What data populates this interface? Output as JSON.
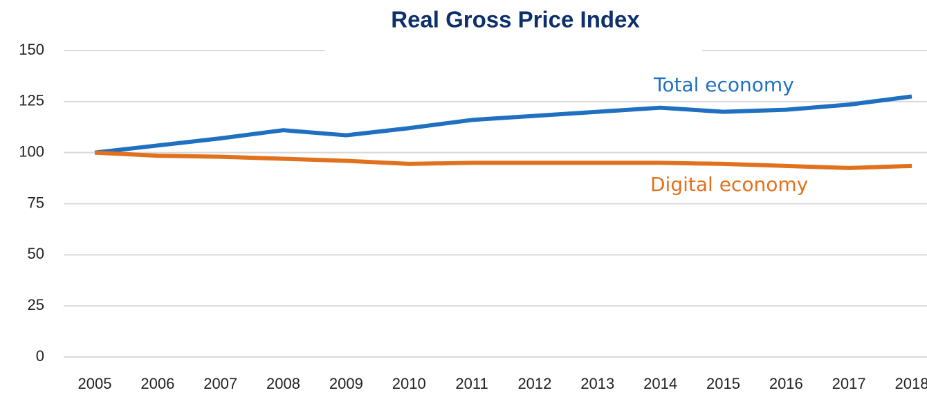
{
  "chart_data": {
    "type": "line",
    "title": "Real Gross Price Index",
    "categories": [
      "2005",
      "2006",
      "2007",
      "2008",
      "2009",
      "2010",
      "2011",
      "2012",
      "2013",
      "2014",
      "2015",
      "2016",
      "2017",
      "2018"
    ],
    "series": [
      {
        "name": "Total economy",
        "color": "#1f70c1",
        "values": [
          100,
          103.5,
          107,
          111,
          108.5,
          112,
          116,
          118,
          120,
          122,
          120,
          121,
          123.5,
          127.5
        ]
      },
      {
        "name": "Digital economy",
        "color": "#e2711d",
        "values": [
          100,
          98.5,
          98,
          97,
          96,
          94.5,
          95,
          95,
          95,
          95,
          94.5,
          93.5,
          92.5,
          93.5
        ]
      }
    ],
    "ylim": [
      0,
      150
    ],
    "yticks": [
      0,
      25,
      50,
      75,
      100,
      125,
      150
    ],
    "grid": true
  }
}
